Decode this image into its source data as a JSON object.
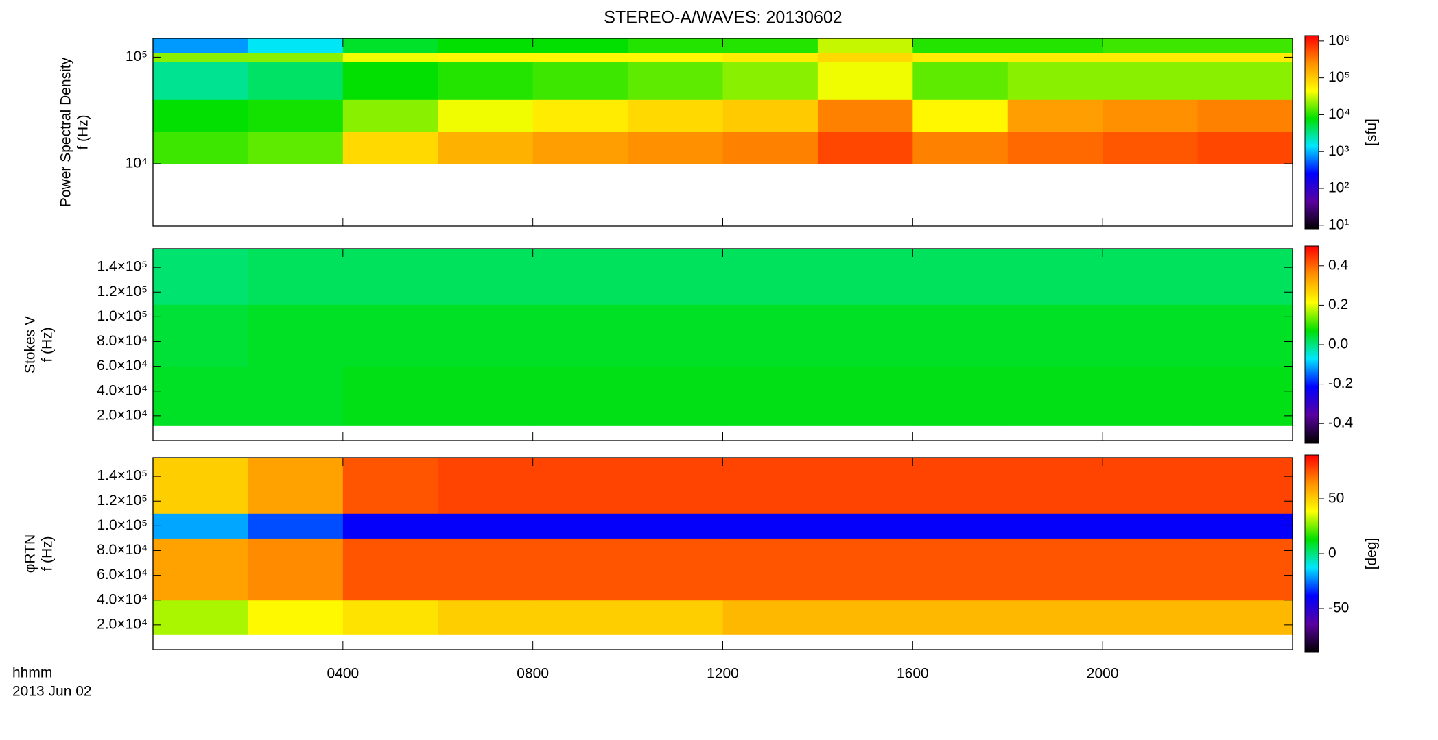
{
  "chart_data": {
    "type": "heatmap",
    "title": "STEREO-A/WAVES: 20130602",
    "xlabel": "hhmm",
    "date": "2013 Jun 02",
    "xlim": [
      0,
      24
    ],
    "xticks": [
      {
        "value": 4,
        "label": "0400"
      },
      {
        "value": 8,
        "label": "0800"
      },
      {
        "value": 12,
        "label": "1200"
      },
      {
        "value": 16,
        "label": "1600"
      },
      {
        "value": 20,
        "label": "2000"
      }
    ],
    "xbins": [
      0,
      2,
      4,
      6,
      8,
      10,
      12,
      14,
      16,
      18,
      20,
      22,
      24
    ],
    "colormap": [
      "#000000",
      "#5a00a0",
      "#0000ff",
      "#00e6ff",
      "#00e000",
      "#ffff00",
      "#ff9000",
      "#ff0000"
    ],
    "panels": [
      {
        "ylabel": "Power Spectral Density",
        "yunit": "f (Hz)",
        "ylog": true,
        "ylim": [
          2600,
          150000
        ],
        "yticks": [
          {
            "value": 10000,
            "label": "10⁴"
          },
          {
            "value": 100000,
            "label": "10⁵"
          }
        ],
        "ybins": [
          10000,
          20000,
          40000,
          90000,
          110000,
          150000
        ],
        "z": [
          [
            12000,
            15000,
            80000,
            150000,
            200000,
            250000,
            300000,
            600000,
            300000,
            400000,
            500000,
            600000
          ],
          [
            8000,
            9000,
            20000,
            40000,
            60000,
            80000,
            100000,
            300000,
            50000,
            200000,
            250000,
            300000
          ],
          [
            3000,
            4000,
            8000,
            10000,
            12000,
            15000,
            20000,
            40000,
            15000,
            20000,
            20000,
            20000
          ],
          [
            20000,
            20000,
            40000,
            50000,
            50000,
            50000,
            60000,
            80000,
            60000,
            60000,
            60000,
            60000
          ],
          [
            800,
            1500,
            6000,
            8000,
            8000,
            10000,
            10000,
            30000,
            10000,
            10000,
            12000,
            12000
          ]
        ],
        "clog": true,
        "clim": [
          8,
          1400000
        ],
        "clabel": "[sfu]",
        "cticks": [
          {
            "value": 10,
            "label": "10¹"
          },
          {
            "value": 100,
            "label": "10²"
          },
          {
            "value": 1000,
            "label": "10³"
          },
          {
            "value": 10000,
            "label": "10⁴"
          },
          {
            "value": 100000,
            "label": "10⁵"
          },
          {
            "value": 1000000,
            "label": "10⁶"
          }
        ]
      },
      {
        "ylabel": "Stokes V",
        "yunit": "f (Hz)",
        "ylog": false,
        "ylim": [
          0,
          155000
        ],
        "yticks": [
          {
            "value": 20000,
            "label": "2.0×10⁴"
          },
          {
            "value": 40000,
            "label": "4.0×10⁴"
          },
          {
            "value": 60000,
            "label": "6.0×10⁴"
          },
          {
            "value": 80000,
            "label": "8.0×10⁴"
          },
          {
            "value": 100000,
            "label": "1.0×10⁵"
          },
          {
            "value": 120000,
            "label": "1.2×10⁵"
          },
          {
            "value": 140000,
            "label": "1.4×10⁵"
          }
        ],
        "ybins": [
          12000,
          60000,
          110000,
          155000
        ],
        "z": [
          [
            0.05,
            0.05,
            0.06,
            0.06,
            0.06,
            0.06,
            0.06,
            0.06,
            0.06,
            0.06,
            0.06,
            0.06
          ],
          [
            0.04,
            0.05,
            0.05,
            0.05,
            0.05,
            0.05,
            0.05,
            0.05,
            0.05,
            0.05,
            0.05,
            0.05
          ],
          [
            0.01,
            0.02,
            0.02,
            0.02,
            0.02,
            0.02,
            0.02,
            0.02,
            0.02,
            0.02,
            0.02,
            0.02
          ]
        ],
        "clog": false,
        "clim": [
          -0.5,
          0.5
        ],
        "cticks": [
          -0.4,
          -0.2,
          {
            "value": 0,
            "label": "0.0"
          },
          0.2,
          0.4
        ]
      },
      {
        "ylabel": "φRTN",
        "yunit": "f (Hz)",
        "ylog": false,
        "ylim": [
          0,
          155000
        ],
        "yticks": [
          {
            "value": 20000,
            "label": "2.0×10⁴"
          },
          {
            "value": 40000,
            "label": "4.0×10⁴"
          },
          {
            "value": 60000,
            "label": "6.0×10⁴"
          },
          {
            "value": 80000,
            "label": "8.0×10⁴"
          },
          {
            "value": 100000,
            "label": "1.0×10⁵"
          },
          {
            "value": 120000,
            "label": "1.2×10⁵"
          },
          {
            "value": 140000,
            "label": "1.4×10⁵"
          }
        ],
        "ybins": [
          12000,
          40000,
          90000,
          110000,
          155000
        ],
        "z": [
          [
            30,
            40,
            45,
            50,
            50,
            50,
            55,
            55,
            55,
            55,
            55,
            55
          ],
          [
            60,
            65,
            75,
            75,
            75,
            75,
            75,
            75,
            75,
            75,
            75,
            75
          ],
          [
            -20,
            -30,
            -40,
            -40,
            -40,
            -40,
            -40,
            -40,
            -40,
            -40,
            -40,
            -40
          ],
          [
            50,
            60,
            75,
            78,
            78,
            78,
            78,
            78,
            78,
            78,
            78,
            78
          ]
        ],
        "clog": false,
        "clim": [
          -90,
          90
        ],
        "clabel": "[deg]",
        "cticks": [
          -50,
          0,
          50
        ]
      }
    ]
  }
}
